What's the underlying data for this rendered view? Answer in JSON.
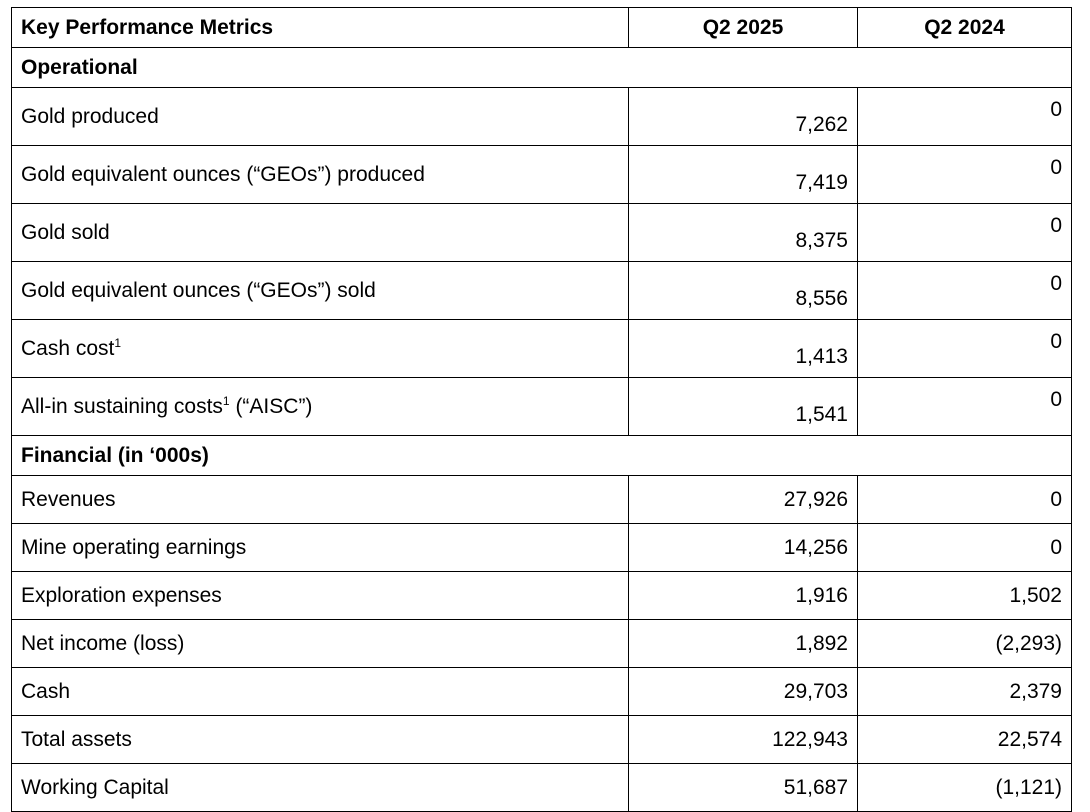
{
  "table": {
    "headers": [
      "Key Performance Metrics",
      "Q2 2025",
      "Q2 2024"
    ],
    "sections": [
      {
        "title": "Operational",
        "rows": [
          {
            "label": "Gold produced",
            "sup": "",
            "suffix": "",
            "q2_2025": "7,262",
            "q2_2024": "0"
          },
          {
            "label": "Gold equivalent ounces (“GEOs”) produced",
            "sup": "",
            "suffix": "",
            "q2_2025": "7,419",
            "q2_2024": "0"
          },
          {
            "label": "Gold sold",
            "sup": "",
            "suffix": "",
            "q2_2025": "8,375",
            "q2_2024": "0"
          },
          {
            "label": "Gold equivalent ounces (“GEOs”) sold",
            "sup": "",
            "suffix": "",
            "q2_2025": "8,556",
            "q2_2024": "0"
          },
          {
            "label": "Cash cost",
            "sup": "1",
            "suffix": "",
            "q2_2025": "1,413",
            "q2_2024": "0"
          },
          {
            "label": "All-in sustaining costs",
            "sup": "1",
            "suffix": " (“AISC”)",
            "q2_2025": "1,541",
            "q2_2024": "0"
          }
        ]
      },
      {
        "title": "Financial (in ‘000s)",
        "rows": [
          {
            "label": "Revenues",
            "sup": "",
            "suffix": "",
            "q2_2025": "27,926",
            "q2_2024": "0"
          },
          {
            "label": "Mine operating earnings",
            "sup": "",
            "suffix": "",
            "q2_2025": "14,256",
            "q2_2024": "0"
          },
          {
            "label": "Exploration expenses",
            "sup": "",
            "suffix": "",
            "q2_2025": "1,916",
            "q2_2024": "1,502"
          },
          {
            "label": "Net income (loss)",
            "sup": "",
            "suffix": "",
            "q2_2025": "1,892",
            "q2_2024": "(2,293)"
          },
          {
            "label": "Cash",
            "sup": "",
            "suffix": "",
            "q2_2025": "29,703",
            "q2_2024": "2,379"
          },
          {
            "label": "Total assets",
            "sup": "",
            "suffix": "",
            "q2_2025": "122,943",
            "q2_2024": "22,574"
          },
          {
            "label": "Working Capital",
            "sup": "",
            "suffix": "",
            "q2_2025": "51,687",
            "q2_2024": "(1,121)"
          }
        ]
      }
    ]
  }
}
